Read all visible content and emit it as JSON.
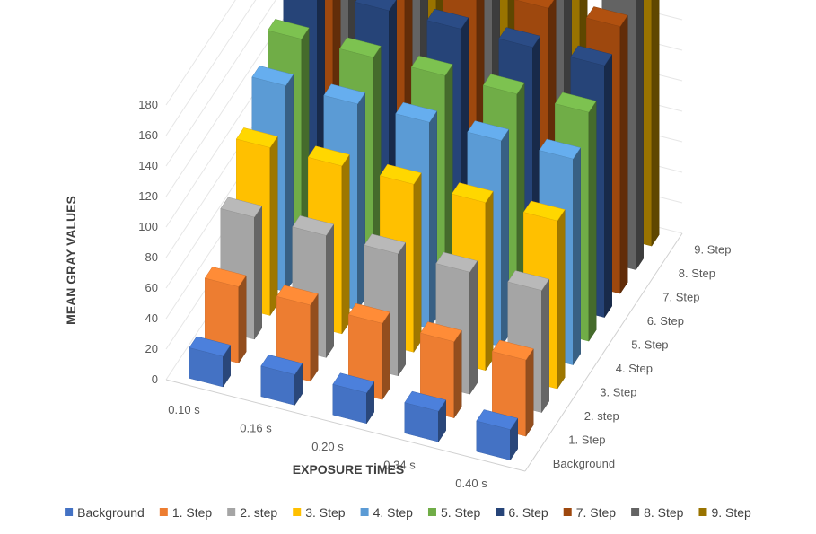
{
  "chart_data": {
    "type": "bar",
    "subtype": "3d-column",
    "title": "",
    "xlabel": "EXPOSURE TİMES",
    "ylabel": "MEAN GRAY VALUES",
    "categories": [
      "0.10 s",
      "0.16 s",
      "0.20 s",
      "0.34 s",
      "0.40 s"
    ],
    "yticks": [
      0,
      20,
      40,
      60,
      80,
      100,
      120,
      140,
      160,
      180
    ],
    "ylim": [
      0,
      180
    ],
    "grid": true,
    "legend": "bottom",
    "series": [
      {
        "name": "Background",
        "color": "#4472C4",
        "values": [
          20,
          20,
          20,
          20,
          20
        ]
      },
      {
        "name": "1. Step",
        "color": "#ED7D31",
        "values": [
          50,
          50,
          50,
          50,
          50
        ]
      },
      {
        "name": "2. step",
        "color": "#A5A5A5",
        "values": [
          80,
          80,
          80,
          80,
          80
        ]
      },
      {
        "name": "3. Step",
        "color": "#FFC000",
        "values": [
          110,
          110,
          110,
          110,
          110
        ]
      },
      {
        "name": "4. Step",
        "color": "#5B9BD5",
        "values": [
          135,
          135,
          135,
          135,
          135
        ]
      },
      {
        "name": "5. Step",
        "color": "#70AD47",
        "values": [
          150,
          150,
          150,
          150,
          150
        ]
      },
      {
        "name": "6. Step",
        "color": "#264478",
        "values": [
          165,
          165,
          165,
          165,
          165
        ]
      },
      {
        "name": "7. Step",
        "color": "#9E480E",
        "values": [
          175,
          175,
          175,
          175,
          175
        ]
      },
      {
        "name": "8. Step",
        "color": "#636363",
        "values": [
          180,
          180,
          180,
          180,
          180
        ]
      },
      {
        "name": "9. Step",
        "color": "#997300",
        "values": [
          185,
          185,
          185,
          185,
          185
        ]
      }
    ]
  }
}
